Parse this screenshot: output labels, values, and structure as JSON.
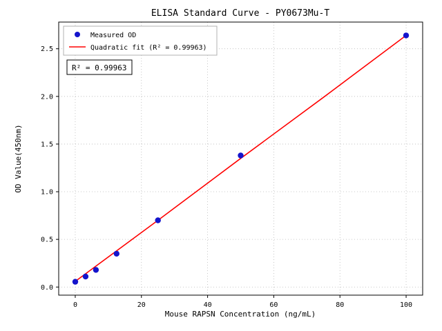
{
  "chart_data": {
    "type": "scatter",
    "title": "ELISA Standard Curve - PY0673Mu-T",
    "xlabel": "Mouse RAPSN Concentration (ng/mL)",
    "ylabel": "OD Value(450nm)",
    "series": [
      {
        "name": "Measured OD",
        "type": "scatter",
        "color": "#1414cc",
        "x": [
          0,
          3.125,
          6.25,
          12.5,
          25,
          50,
          100
        ],
        "y": [
          0.055,
          0.11,
          0.18,
          0.35,
          0.7,
          1.38,
          2.64
        ]
      },
      {
        "name": "Quadratic fit (R² = 0.99963)",
        "type": "line",
        "color": "#ff0000",
        "x": [
          0,
          25,
          50,
          75,
          100
        ],
        "y": [
          0.06,
          0.7,
          1.35,
          1.99,
          2.64
        ]
      }
    ],
    "annotation": "R² = 0.99963",
    "xlim": [
      -5,
      105
    ],
    "ylim": [
      -0.085,
      2.78
    ],
    "xticks": [
      0,
      20,
      40,
      60,
      80,
      100
    ],
    "xtick_labels": [
      "0",
      "20",
      "40",
      "60",
      "80",
      "100"
    ],
    "yticks": [
      0.0,
      0.5,
      1.0,
      1.5,
      2.0,
      2.5
    ],
    "ytick_labels": [
      "0.0",
      "0.5",
      "1.0",
      "1.5",
      "2.0",
      "2.5"
    ],
    "grid": true,
    "grid_color": "#b8b8b8",
    "legend_position": "upper left",
    "point_color": "#1414cc",
    "line_color": "#ff0000",
    "spine_color": "#000000"
  }
}
